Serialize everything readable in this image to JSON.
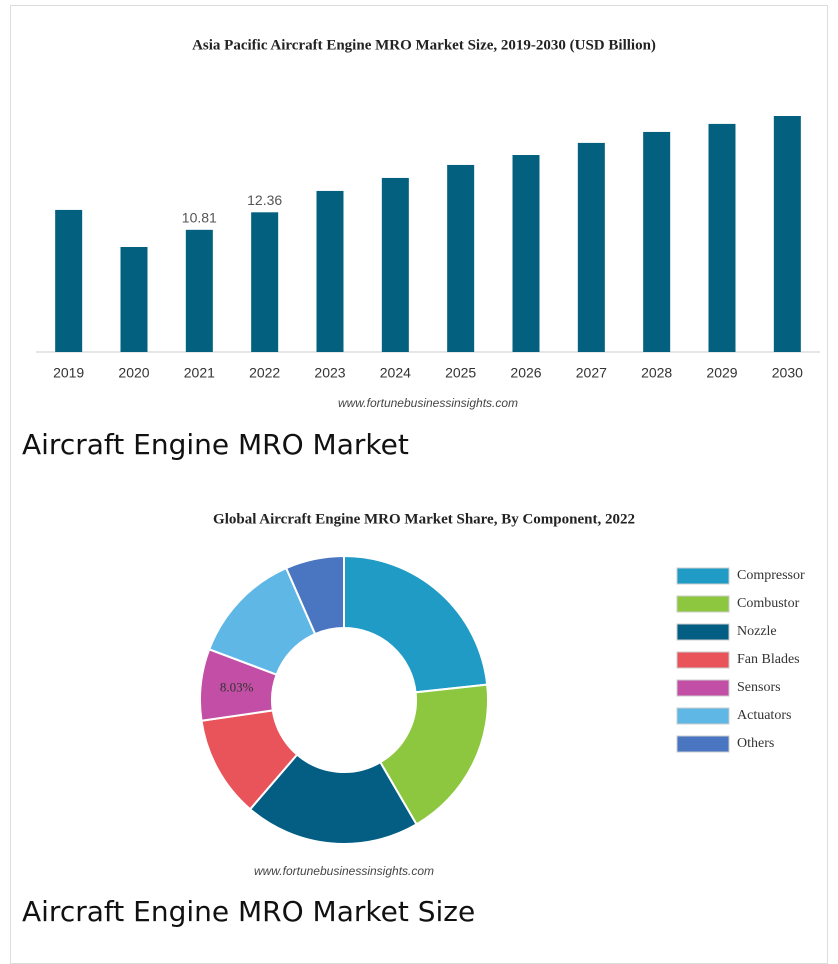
{
  "chart_data": [
    {
      "type": "bar",
      "title": "Asia Pacific Aircraft Engine MRO Market Size, 2019-2030 (USD Billion)",
      "categories": [
        "2019",
        "2020",
        "2021",
        "2022",
        "2023",
        "2024",
        "2025",
        "2026",
        "2027",
        "2028",
        "2029",
        "2030"
      ],
      "values": [
        12.57,
        9.29,
        10.81,
        12.36,
        14.25,
        15.4,
        16.55,
        17.43,
        18.5,
        19.47,
        20.18,
        20.88
      ],
      "value_labels": [
        null,
        null,
        "10.81",
        "12.36",
        null,
        null,
        null,
        null,
        null,
        null,
        null,
        null
      ],
      "color": "#04607f",
      "source": "www.fortunebusinessinsights.com"
    },
    {
      "type": "pie",
      "title": "Global Aircraft Engine MRO Market Share, By Component, 2022",
      "categories": [
        "Compressor",
        "Combustor",
        "Nozzle",
        "Fan Blades",
        "Sensors",
        "Actuators",
        "Others"
      ],
      "values": [
        23.3,
        18.3,
        19.7,
        11.4,
        8.03,
        12.7,
        6.57
      ],
      "value_labels": [
        null,
        null,
        null,
        null,
        "8.03%",
        null,
        null
      ],
      "colors": [
        "#1f9bc6",
        "#8dc63f",
        "#045e84",
        "#e8545a",
        "#c24fa5",
        "#5fb7e6",
        "#4a75c0"
      ],
      "legend": "right",
      "source": "www.fortunebusinessinsights.com"
    }
  ],
  "captions": [
    "Aircraft Engine MRO Market",
    "Aircraft Engine MRO Market Size"
  ]
}
